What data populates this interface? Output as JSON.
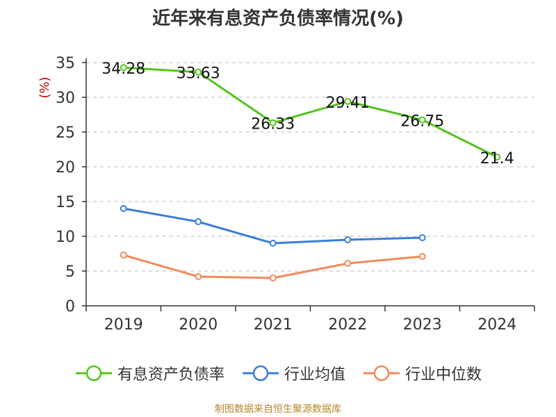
{
  "title": "近年来有息资产负债率情况(%)",
  "source": "制图数据来自恒生聚源数据库",
  "colors": {
    "series_main": "#52c41a",
    "series_avg": "#3b7dd8",
    "series_median": "#f08a5d",
    "grid": "#bbbbbb",
    "axis": "#333333",
    "ylabel": "#cc0000"
  },
  "legend_items": [
    {
      "label": "有息资产负债率",
      "color": "#52c41a"
    },
    {
      "label": "行业均值",
      "color": "#3b7dd8"
    },
    {
      "label": "行业中位数",
      "color": "#f08a5d"
    }
  ],
  "chart_data": {
    "type": "line",
    "title": "近年来有息资产负债率情况(%)",
    "xlabel": "",
    "ylabel": "(%)",
    "categories": [
      "2019",
      "2020",
      "2021",
      "2022",
      "2023",
      "2024"
    ],
    "ylim": [
      0,
      35
    ],
    "yticks": [
      0,
      5,
      10,
      15,
      20,
      25,
      30,
      35
    ],
    "grid": true,
    "legend": "bottom",
    "series": [
      {
        "name": "有息资产负债率",
        "color": "#52c41a",
        "values": [
          34.28,
          33.63,
          26.33,
          29.41,
          26.75,
          21.4
        ],
        "labels": [
          "34.28",
          "33.63",
          "26.33",
          "29.41",
          "26.75",
          "21.4"
        ],
        "show_labels": true
      },
      {
        "name": "行业均值",
        "color": "#3b7dd8",
        "values": [
          14.0,
          12.1,
          9.0,
          9.5,
          9.8,
          null
        ],
        "show_labels": false
      },
      {
        "name": "行业中位数",
        "color": "#f08a5d",
        "values": [
          7.3,
          4.2,
          4.0,
          6.1,
          7.1,
          null
        ],
        "show_labels": false
      }
    ]
  }
}
